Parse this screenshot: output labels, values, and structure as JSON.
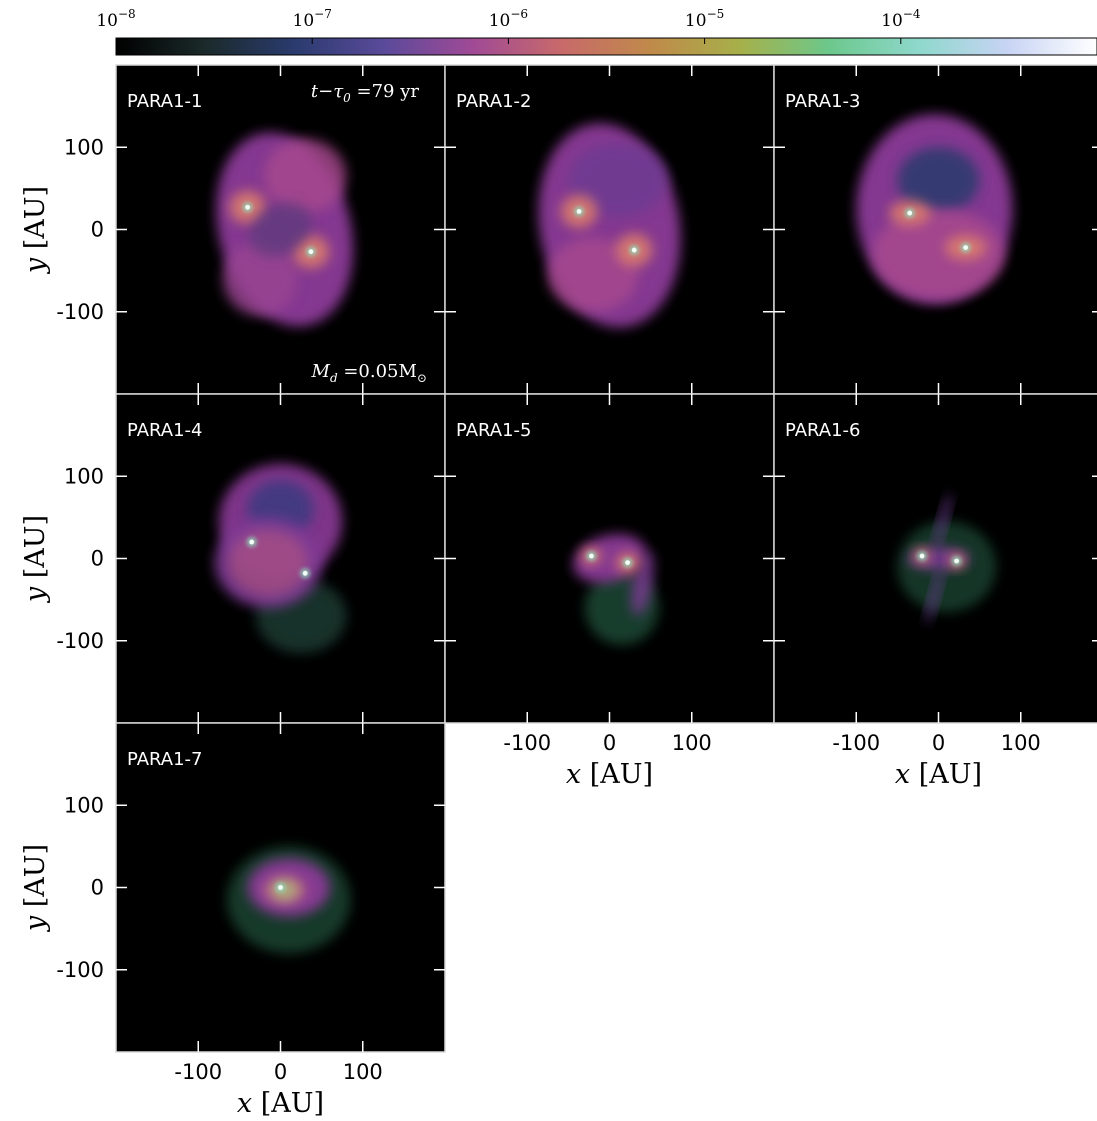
{
  "chart_data": {
    "type": "heatmap",
    "colorbar": {
      "scale": "log",
      "range": [
        1e-08,
        0.001
      ],
      "tick_labels": [
        {
          "base": "10",
          "exp": "−8",
          "value": 1e-08
        },
        {
          "base": "10",
          "exp": "−7",
          "value": 1e-07
        },
        {
          "base": "10",
          "exp": "−6",
          "value": 1e-06
        },
        {
          "base": "10",
          "exp": "−5",
          "value": 1e-05
        },
        {
          "base": "10",
          "exp": "−4",
          "value": 0.0001
        }
      ],
      "colors": [
        "#000000",
        "#1b2a2a",
        "#2a3b6e",
        "#5a4a9a",
        "#a04a96",
        "#c86a6a",
        "#c08a4a",
        "#a6b04a",
        "#6cc88c",
        "#8ed8cc",
        "#c8d4f4",
        "#ffffff"
      ]
    },
    "xlim": [
      -200,
      200
    ],
    "ylim": [
      -200,
      200
    ],
    "x_ticks": [
      -100,
      0,
      100
    ],
    "y_ticks": [
      100,
      0,
      -100
    ],
    "x_tick_labels": [
      "-100",
      "0",
      "100"
    ],
    "y_tick_labels": [
      "100",
      "0",
      "-100"
    ],
    "xlabel": {
      "var": "x",
      "unit": "[AU]"
    },
    "ylabel": {
      "var": "y",
      "unit": "[AU]"
    },
    "annotations": {
      "time": {
        "text": "t−τ",
        "sub": "0",
        "rest": " =79 yr"
      },
      "mass": {
        "text": "M",
        "sub": "d",
        "rest": " =0.05M",
        "sub2": "⊙"
      }
    },
    "panels": [
      {
        "label": "PARA1-1",
        "row": 0,
        "col": 0,
        "stars": [
          [
            -40,
            27
          ],
          [
            37,
            -27
          ]
        ],
        "blobs": [
          {
            "cx": 5,
            "cy": 0,
            "rx": 80,
            "ry": 120,
            "rot": -15,
            "color": "#8c3a98",
            "op": 0.95
          },
          {
            "cx": 30,
            "cy": 65,
            "rx": 50,
            "ry": 45,
            "rot": 0,
            "color": "#a8488e",
            "op": 0.8
          },
          {
            "cx": -25,
            "cy": -60,
            "rx": 45,
            "ry": 45,
            "rot": 0,
            "color": "#9a4492",
            "op": 0.8
          },
          {
            "cx": -40,
            "cy": 27,
            "rx": 22,
            "ry": 20,
            "rot": 0,
            "color": "#e0806a",
            "op": 0.85
          },
          {
            "cx": 37,
            "cy": -27,
            "rx": 22,
            "ry": 20,
            "rot": 0,
            "color": "#e0806a",
            "op": 0.85
          },
          {
            "cx": 0,
            "cy": 0,
            "rx": 40,
            "ry": 30,
            "rot": -30,
            "color": "#5a3a7a",
            "op": 0.7
          }
        ]
      },
      {
        "label": "PARA1-2",
        "row": 0,
        "col": 1,
        "stars": [
          [
            -37,
            22
          ],
          [
            30,
            -25
          ]
        ],
        "blobs": [
          {
            "cx": 0,
            "cy": 5,
            "rx": 85,
            "ry": 125,
            "rot": -10,
            "color": "#8c3a98",
            "op": 0.95
          },
          {
            "cx": 10,
            "cy": 60,
            "rx": 60,
            "ry": 45,
            "rot": 0,
            "color": "#6e3a92",
            "op": 0.85
          },
          {
            "cx": -20,
            "cy": -55,
            "rx": 55,
            "ry": 45,
            "rot": 0,
            "color": "#a8488e",
            "op": 0.8
          },
          {
            "cx": -37,
            "cy": 22,
            "rx": 22,
            "ry": 20,
            "rot": 0,
            "color": "#e0806a",
            "op": 0.85
          },
          {
            "cx": 30,
            "cy": -25,
            "rx": 22,
            "ry": 20,
            "rot": 0,
            "color": "#e0806a",
            "op": 0.85
          }
        ]
      },
      {
        "label": "PARA1-3",
        "row": 0,
        "col": 2,
        "stars": [
          [
            -35,
            20
          ],
          [
            33,
            -22
          ]
        ],
        "blobs": [
          {
            "cx": -5,
            "cy": 25,
            "rx": 95,
            "ry": 115,
            "rot": 0,
            "color": "#8c3a98",
            "op": 0.95
          },
          {
            "cx": 0,
            "cy": 60,
            "rx": 50,
            "ry": 40,
            "rot": 0,
            "color": "#2e3a70",
            "op": 0.9
          },
          {
            "cx": 0,
            "cy": -30,
            "rx": 80,
            "ry": 55,
            "rot": 0,
            "color": "#a8488e",
            "op": 0.85
          },
          {
            "cx": -35,
            "cy": 20,
            "rx": 25,
            "ry": 15,
            "rot": 0,
            "color": "#e0806a",
            "op": 0.85
          },
          {
            "cx": 33,
            "cy": -22,
            "rx": 25,
            "ry": 15,
            "rot": 0,
            "color": "#e0806a",
            "op": 0.85
          }
        ]
      },
      {
        "label": "PARA1-4",
        "row": 1,
        "col": 0,
        "stars": [
          [
            -35,
            20
          ],
          [
            30,
            -18
          ]
        ],
        "blobs": [
          {
            "cx": 25,
            "cy": -70,
            "rx": 55,
            "ry": 45,
            "rot": 0,
            "color": "#1e3a32",
            "op": 0.85
          },
          {
            "cx": 0,
            "cy": 45,
            "rx": 75,
            "ry": 70,
            "rot": 0,
            "color": "#8c3a98",
            "op": 0.9
          },
          {
            "cx": 0,
            "cy": 60,
            "rx": 40,
            "ry": 35,
            "rot": 0,
            "color": "#3a3a80",
            "op": 0.85
          },
          {
            "cx": -15,
            "cy": -5,
            "rx": 65,
            "ry": 55,
            "rot": 0,
            "color": "#7e3a94",
            "op": 0.9
          },
          {
            "cx": -15,
            "cy": -5,
            "rx": 48,
            "ry": 40,
            "rot": 0,
            "color": "#b8587e",
            "op": 0.55
          }
        ]
      },
      {
        "label": "PARA1-5",
        "row": 1,
        "col": 1,
        "stars": [
          [
            -22,
            3
          ],
          [
            22,
            -5
          ]
        ],
        "blobs": [
          {
            "cx": 15,
            "cy": -60,
            "rx": 45,
            "ry": 45,
            "rot": 0,
            "color": "#1e4a36",
            "op": 0.85
          },
          {
            "cx": 0,
            "cy": 0,
            "rx": 45,
            "ry": 28,
            "rot": -15,
            "color": "#8c3a98",
            "op": 0.95
          },
          {
            "cx": 40,
            "cy": -30,
            "rx": 12,
            "ry": 40,
            "rot": 10,
            "color": "#7a3a92",
            "op": 0.85
          },
          {
            "cx": -22,
            "cy": 3,
            "rx": 12,
            "ry": 10,
            "rot": 0,
            "color": "#e0806a",
            "op": 0.9
          },
          {
            "cx": 22,
            "cy": -5,
            "rx": 14,
            "ry": 12,
            "rot": 0,
            "color": "#e0806a",
            "op": 0.9
          }
        ]
      },
      {
        "label": "PARA1-6",
        "row": 1,
        "col": 2,
        "stars": [
          [
            -20,
            3
          ],
          [
            22,
            -3
          ]
        ],
        "blobs": [
          {
            "cx": 10,
            "cy": -10,
            "rx": 60,
            "ry": 55,
            "rot": 0,
            "color": "#1e4a36",
            "op": 0.75
          },
          {
            "cx": 0,
            "cy": 0,
            "rx": 38,
            "ry": 14,
            "rot": 0,
            "color": "#7a3a92",
            "op": 0.9
          },
          {
            "cx": 5,
            "cy": 45,
            "rx": 5,
            "ry": 35,
            "rot": 15,
            "color": "#6a3a90",
            "op": 0.8
          },
          {
            "cx": -5,
            "cy": -45,
            "rx": 5,
            "ry": 35,
            "rot": 15,
            "color": "#6a3a90",
            "op": 0.8
          },
          {
            "cx": -20,
            "cy": 3,
            "rx": 9,
            "ry": 9,
            "rot": 0,
            "color": "#e0806a",
            "op": 0.9
          },
          {
            "cx": 22,
            "cy": -3,
            "rx": 9,
            "ry": 9,
            "rot": 0,
            "color": "#e0806a",
            "op": 0.9
          }
        ]
      },
      {
        "label": "PARA1-7",
        "row": 2,
        "col": 0,
        "stars": [
          [
            0,
            0
          ]
        ],
        "blobs": [
          {
            "cx": 10,
            "cy": -15,
            "rx": 75,
            "ry": 65,
            "rot": 0,
            "color": "#1e4a36",
            "op": 0.8
          },
          {
            "cx": 10,
            "cy": 0,
            "rx": 50,
            "ry": 35,
            "rot": 0,
            "color": "#8c3a98",
            "op": 0.95
          },
          {
            "cx": 5,
            "cy": -3,
            "rx": 25,
            "ry": 16,
            "rot": 0,
            "color": "#c8787a",
            "op": 0.8
          },
          {
            "cx": 5,
            "cy": -3,
            "rx": 15,
            "ry": 12,
            "rot": 0,
            "color": "#a8c87a",
            "op": 0.75
          }
        ]
      }
    ]
  }
}
